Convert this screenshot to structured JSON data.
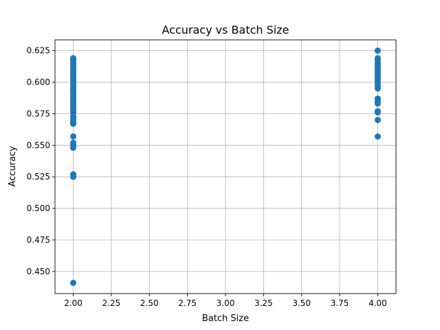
{
  "chart_data": {
    "type": "scatter",
    "title": "Accuracy vs Batch Size",
    "xlabel": "Batch Size",
    "ylabel": "Accuracy",
    "xlim": [
      1.88,
      4.12
    ],
    "ylim": [
      0.4325,
      0.6335
    ],
    "xticks": [
      2.0,
      2.25,
      2.5,
      2.75,
      3.0,
      3.25,
      3.5,
      3.75,
      4.0
    ],
    "xtick_labels": [
      "2.00",
      "2.25",
      "2.50",
      "2.75",
      "3.00",
      "3.25",
      "3.50",
      "3.75",
      "4.00"
    ],
    "yticks": [
      0.45,
      0.475,
      0.5,
      0.525,
      0.55,
      0.575,
      0.6,
      0.625
    ],
    "ytick_labels": [
      "0.450",
      "0.475",
      "0.500",
      "0.525",
      "0.550",
      "0.575",
      "0.600",
      "0.625"
    ],
    "grid": true,
    "marker_color": "#1f77b4",
    "series": [
      {
        "x": [
          2,
          2,
          2,
          2,
          2,
          2,
          2,
          2,
          2,
          2,
          2,
          2,
          2,
          2,
          2,
          2,
          2,
          2,
          2,
          2,
          2,
          2,
          2,
          2,
          2,
          2,
          2,
          2,
          2,
          2,
          2,
          2,
          2,
          2,
          2,
          2,
          2,
          2,
          2,
          2
        ],
        "y": [
          0.619,
          0.617,
          0.615,
          0.613,
          0.611,
          0.609,
          0.607,
          0.605,
          0.603,
          0.601,
          0.599,
          0.597,
          0.595,
          0.593,
          0.591,
          0.589,
          0.587,
          0.585,
          0.583,
          0.581,
          0.579,
          0.576,
          0.573,
          0.571,
          0.569,
          0.567,
          0.557,
          0.552,
          0.55,
          0.548,
          0.527,
          0.525,
          0.441,
          0.618,
          0.61,
          0.602,
          0.594,
          0.586,
          0.578,
          0.568
        ]
      },
      {
        "x": [
          4,
          4,
          4,
          4,
          4,
          4,
          4,
          4,
          4,
          4,
          4,
          4,
          4,
          4,
          4,
          4,
          4,
          4,
          4,
          4,
          4,
          4,
          4
        ],
        "y": [
          0.625,
          0.619,
          0.617,
          0.615,
          0.613,
          0.611,
          0.609,
          0.607,
          0.605,
          0.603,
          0.601,
          0.599,
          0.597,
          0.595,
          0.587,
          0.585,
          0.583,
          0.577,
          0.576,
          0.57,
          0.557,
          0.612,
          0.604
        ]
      }
    ]
  }
}
